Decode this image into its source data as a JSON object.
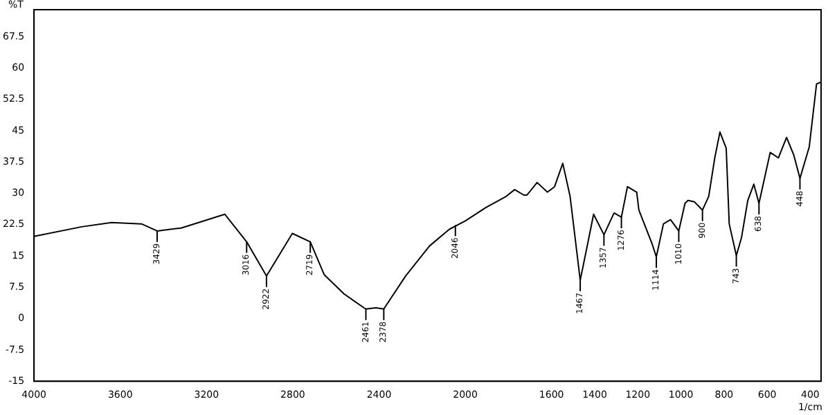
{
  "chart_data": {
    "type": "line",
    "xlabel": "1/cm",
    "ylabel": "%T",
    "color": "#000000",
    "marker": "none",
    "grid": false,
    "legend": false,
    "x": [
      4000,
      3779,
      3641,
      3502,
      3429,
      3318,
      3115,
      3014,
      2922,
      2802,
      2719,
      2654,
      2562,
      2470,
      2461,
      2415,
      2378,
      2277,
      2166,
      2074,
      2000,
      1905,
      1810,
      1771,
      1729,
      1714,
      1667,
      1619,
      1586,
      1548,
      1514,
      1467,
      1433,
      1405,
      1357,
      1310,
      1276,
      1248,
      1205,
      1195,
      1133,
      1114,
      1081,
      1048,
      1010,
      981,
      967,
      938,
      900,
      871,
      843,
      819,
      790,
      776,
      743,
      719,
      690,
      662,
      638,
      586,
      548,
      510,
      476,
      448,
      405,
      371,
      352
    ],
    "values": [
      19.7,
      22,
      23,
      22.7,
      21,
      21.7,
      25,
      18.4,
      10.2,
      20.4,
      18.4,
      10.5,
      5.9,
      2.6,
      2.3,
      2.6,
      2.3,
      10.2,
      17.4,
      21.4,
      23.4,
      26.6,
      29.3,
      30.9,
      29.6,
      29.6,
      32.6,
      30.3,
      31.6,
      37.2,
      29.3,
      9.2,
      17.8,
      25,
      20.1,
      25.3,
      24.3,
      31.6,
      30.3,
      26,
      17.8,
      14.8,
      22.7,
      23.7,
      21,
      27.6,
      28.3,
      28,
      26,
      29.3,
      38.5,
      44.7,
      40.8,
      22.7,
      15.1,
      19.4,
      28.3,
      32.2,
      27.6,
      39.8,
      38.5,
      43.4,
      39.1,
      33.6,
      41.1,
      56.2,
      56.6
    ],
    "xlim": [
      4000,
      350
    ],
    "xticks": [
      4000,
      3600,
      3200,
      2800,
      2400,
      2000,
      1600,
      1400,
      1200,
      1000,
      800,
      600,
      400
    ],
    "ylim": [
      -15,
      74
    ],
    "yticks": [
      -15,
      -7.5,
      0,
      7.5,
      15,
      22.5,
      30,
      37.5,
      45,
      52.5,
      60,
      67.5
    ],
    "annotations": [
      {
        "text": "3429",
        "x": 3429,
        "y": 21
      },
      {
        "text": "3016",
        "x": 3014,
        "y": 18.4
      },
      {
        "text": "2922",
        "x": 2922,
        "y": 10.2
      },
      {
        "text": "2719",
        "x": 2719,
        "y": 18.4
      },
      {
        "text": "2461",
        "x": 2461,
        "y": 2.3
      },
      {
        "text": "2378",
        "x": 2378,
        "y": 2.3
      },
      {
        "text": "2046",
        "x": 2046,
        "y": 22.4
      },
      {
        "text": "1467",
        "x": 1467,
        "y": 9.2
      },
      {
        "text": "1357",
        "x": 1357,
        "y": 20.1
      },
      {
        "text": "1276",
        "x": 1276,
        "y": 24.3
      },
      {
        "text": "1114",
        "x": 1114,
        "y": 14.8
      },
      {
        "text": "1010",
        "x": 1010,
        "y": 21
      },
      {
        "text": "900",
        "x": 900,
        "y": 26
      },
      {
        "text": "743",
        "x": 743,
        "y": 15.1
      },
      {
        "text": "638",
        "x": 638,
        "y": 27.6
      },
      {
        "text": "448",
        "x": 448,
        "y": 33.6
      }
    ]
  }
}
